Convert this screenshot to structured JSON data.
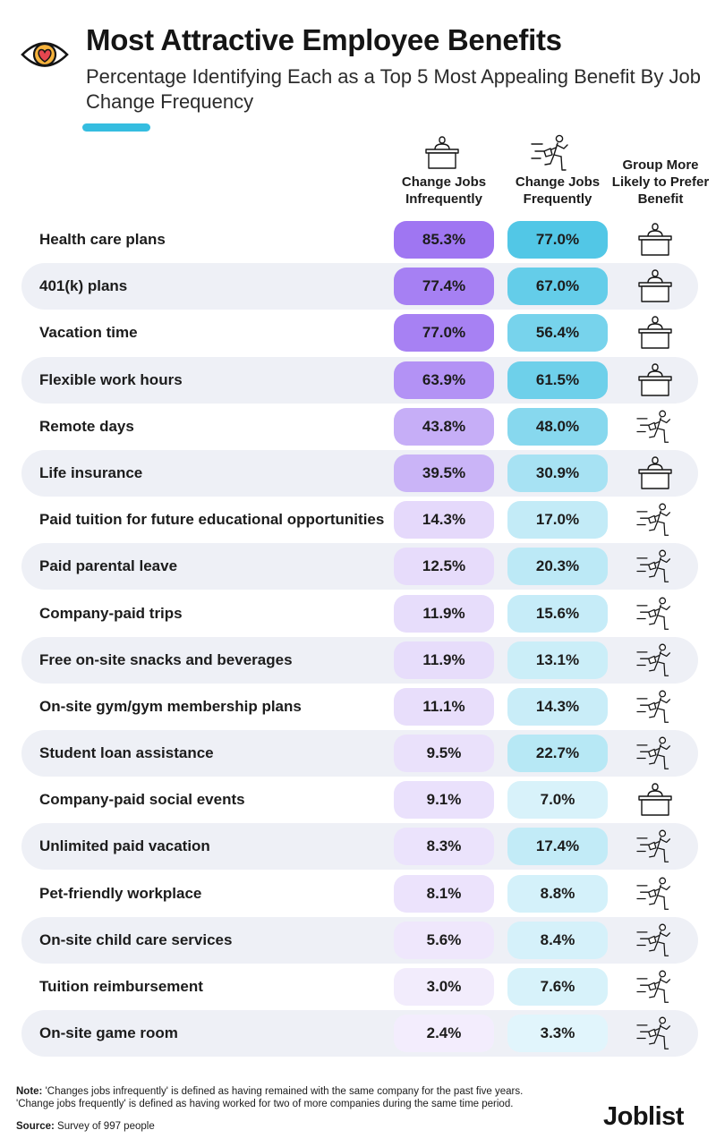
{
  "header": {
    "title": "Most Attractive Employee Benefits",
    "subtitle": "Percentage Identifying Each as a Top 5 Most Appealing Benefit By Job Change Frequency",
    "icon": "eye-heart-icon"
  },
  "columns": {
    "infrequent": "Change Jobs Infrequently",
    "frequent": "Change Jobs Frequently",
    "group": "Group More Likely to Prefer Benefit"
  },
  "colors": {
    "infrequent_max": "#9f76f2",
    "infrequent_min": "#f6f2fd",
    "frequent_max": "#52c7e6",
    "frequent_min": "#eaf8fd",
    "accent": "#35bde0",
    "row_shade": "#eef0f6"
  },
  "chart_data": {
    "type": "table",
    "title": "Most Attractive Employee Benefits",
    "subtitle": "Percentage Identifying Each as a Top 5 Most Appealing Benefit By Job Change Frequency",
    "series": [
      {
        "name": "Change Jobs Infrequently",
        "key": "infrequent"
      },
      {
        "name": "Change Jobs Frequently",
        "key": "frequent"
      }
    ],
    "rows": [
      {
        "benefit": "Health care plans",
        "infrequent": "85.3%",
        "frequent": "77.0%",
        "group": "infrequent"
      },
      {
        "benefit": "401(k) plans",
        "infrequent": "77.4%",
        "frequent": "67.0%",
        "group": "infrequent"
      },
      {
        "benefit": "Vacation time",
        "infrequent": "77.0%",
        "frequent": "56.4%",
        "group": "infrequent"
      },
      {
        "benefit": "Flexible work hours",
        "infrequent": "63.9%",
        "frequent": "61.5%",
        "group": "infrequent"
      },
      {
        "benefit": "Remote days",
        "infrequent": "43.8%",
        "frequent": "48.0%",
        "group": "frequent"
      },
      {
        "benefit": "Life insurance",
        "infrequent": "39.5%",
        "frequent": "30.9%",
        "group": "infrequent"
      },
      {
        "benefit": "Paid tuition for future educational opportunities",
        "infrequent": "14.3%",
        "frequent": "17.0%",
        "group": "frequent"
      },
      {
        "benefit": "Paid parental leave",
        "infrequent": "12.5%",
        "frequent": "20.3%",
        "group": "frequent"
      },
      {
        "benefit": "Company-paid trips",
        "infrequent": "11.9%",
        "frequent": "15.6%",
        "group": "frequent"
      },
      {
        "benefit": "Free on-site snacks and beverages",
        "infrequent": "11.9%",
        "frequent": "13.1%",
        "group": "frequent"
      },
      {
        "benefit": "On-site gym/gym membership plans",
        "infrequent": "11.1%",
        "frequent": "14.3%",
        "group": "frequent"
      },
      {
        "benefit": "Student loan assistance",
        "infrequent": "9.5%",
        "frequent": "22.7%",
        "group": "frequent"
      },
      {
        "benefit": "Company-paid social events",
        "infrequent": "9.1%",
        "frequent": "7.0%",
        "group": "infrequent"
      },
      {
        "benefit": "Unlimited paid vacation",
        "infrequent": "8.3%",
        "frequent": "17.4%",
        "group": "frequent"
      },
      {
        "benefit": "Pet-friendly workplace",
        "infrequent": "8.1%",
        "frequent": "8.8%",
        "group": "frequent"
      },
      {
        "benefit": "On-site child care services",
        "infrequent": "5.6%",
        "frequent": "8.4%",
        "group": "frequent"
      },
      {
        "benefit": "Tuition reimbursement",
        "infrequent": "3.0%",
        "frequent": "7.6%",
        "group": "frequent"
      },
      {
        "benefit": "On-site game room",
        "infrequent": "2.4%",
        "frequent": "3.3%",
        "group": "frequent"
      }
    ]
  },
  "footer": {
    "note_label": "Note:",
    "note_line1": " 'Changes jobs infrequently' is defined as having remained with the same company for the past five years.",
    "note_line2": "'Change jobs frequently' is defined as having worked for two of more companies during the same time period.",
    "source_label": "Source:",
    "source_text": " Survey of 997 people",
    "brand": "Joblist"
  }
}
